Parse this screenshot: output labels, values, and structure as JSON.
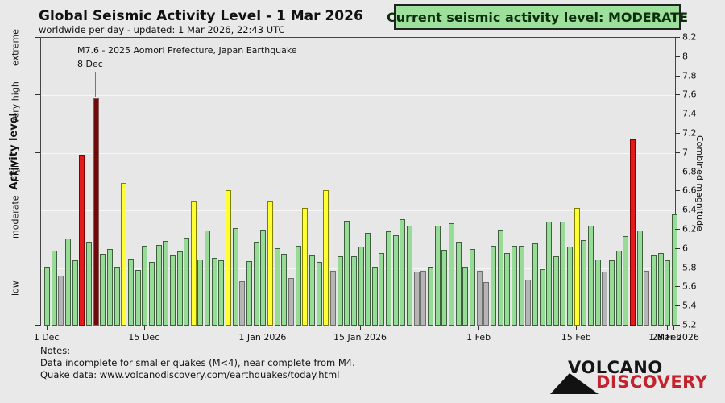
{
  "header": {
    "title": "Global Seismic Activity Level - 1 Mar 2026",
    "subtitle": "worldwide per day - updated:  1 Mar 2026, 22:43 UTC",
    "badge": "Current seismic activity level: MODERATE"
  },
  "annotation": {
    "text": "M7.6 - 2025 Aomori Prefecture, Japan Earthquake",
    "date": "8 Dec"
  },
  "notes": {
    "title": "Notes:",
    "lines": [
      "Data incomplete for smaller quakes (M<4), near complete from M4.",
      "Quake data: www.volcanodiscovery.com/earthquakes/today.html"
    ]
  },
  "logo": {
    "line1": "VOLCANO",
    "line2": "DISCOVERY"
  },
  "colors": {
    "background": "#e9e9e9",
    "plot_background": "#e7e7e7",
    "grid": "#f7f7f7",
    "badge_bg": "#9ce09c",
    "badge_border": "#222222",
    "logo_red": "#c4232e",
    "annotation_line": "#777777",
    "levels": {
      "green": {
        "fill": "#96db96",
        "border": "#3f5f3f"
      },
      "gray": {
        "fill": "#b5b5b5",
        "border": "#6f6f6f"
      },
      "yellow": {
        "fill": "#ffff33",
        "border": "#7f7f00"
      },
      "red": {
        "fill": "#e51a1a",
        "border": "#7f0000"
      },
      "darkred": {
        "fill": "#6f0a0a",
        "border": "#8a5a5a"
      }
    }
  },
  "chart_data": {
    "type": "bar",
    "title": "Global Seismic Activity Level - 1 Mar 2026",
    "xlabel": "",
    "ylabel_left": "Activity level",
    "ylabel_right": "Combined magnitude",
    "ylim": [
      5.2,
      8.2
    ],
    "grid": true,
    "y_band_boundaries": [
      5.8,
      6.4,
      7.0,
      7.6
    ],
    "y_categories": [
      "low",
      "moderate",
      "high",
      "very high",
      "extreme"
    ],
    "right_tick_labels": [
      "8.2",
      "8",
      "7.8",
      "7.6",
      "7.4",
      "7.2",
      "7",
      "6.8",
      "6.6",
      "6.4",
      "6.2",
      "6",
      "5.8",
      "5.6",
      "5.4",
      "5.2"
    ],
    "x_ticks": [
      {
        "label": "1 Dec",
        "day": 0
      },
      {
        "label": "15 Dec",
        "day": 14
      },
      {
        "label": "1 Jan 2026",
        "day": 31
      },
      {
        "label": "15 Jan 2026",
        "day": 45
      },
      {
        "label": "1 Feb",
        "day": 62
      },
      {
        "label": "15 Feb",
        "day": 76
      },
      {
        "label": "28 Feb",
        "day": 89
      },
      {
        "label": "1 Mar 2026",
        "day": 90
      }
    ],
    "categories": [
      "1 Dec",
      "2 Dec",
      "3 Dec",
      "4 Dec",
      "5 Dec",
      "6 Dec",
      "7 Dec",
      "8 Dec",
      "9 Dec",
      "10 Dec",
      "11 Dec",
      "12 Dec",
      "13 Dec",
      "14 Dec",
      "15 Dec",
      "16 Dec",
      "17 Dec",
      "18 Dec",
      "19 Dec",
      "20 Dec",
      "21 Dec",
      "22 Dec",
      "23 Dec",
      "24 Dec",
      "25 Dec",
      "26 Dec",
      "27 Dec",
      "28 Dec",
      "29 Dec",
      "30 Dec",
      "31 Dec",
      "1 Jan",
      "2 Jan",
      "3 Jan",
      "4 Jan",
      "5 Jan",
      "6 Jan",
      "7 Jan",
      "8 Jan",
      "9 Jan",
      "10 Jan",
      "11 Jan",
      "12 Jan",
      "13 Jan",
      "14 Jan",
      "15 Jan",
      "16 Jan",
      "17 Jan",
      "18 Jan",
      "19 Jan",
      "20 Jan",
      "21 Jan",
      "22 Jan",
      "23 Jan",
      "24 Jan",
      "25 Jan",
      "26 Jan",
      "27 Jan",
      "28 Jan",
      "29 Jan",
      "30 Jan",
      "31 Jan",
      "1 Feb",
      "2 Feb",
      "3 Feb",
      "4 Feb",
      "5 Feb",
      "6 Feb",
      "7 Feb",
      "8 Feb",
      "9 Feb",
      "10 Feb",
      "11 Feb",
      "12 Feb",
      "13 Feb",
      "14 Feb",
      "15 Feb",
      "16 Feb",
      "17 Feb",
      "18 Feb",
      "19 Feb",
      "20 Feb",
      "21 Feb",
      "22 Feb",
      "23 Feb",
      "24 Feb",
      "25 Feb",
      "26 Feb",
      "27 Feb",
      "28 Feb",
      "1 Mar"
    ],
    "values": [
      5.81,
      5.98,
      5.72,
      6.11,
      5.88,
      6.98,
      6.07,
      7.57,
      5.95,
      6.0,
      5.81,
      6.69,
      5.9,
      5.78,
      6.03,
      5.86,
      6.04,
      6.08,
      5.94,
      5.97,
      6.12,
      6.5,
      5.89,
      6.19,
      5.91,
      5.88,
      6.61,
      6.22,
      5.66,
      5.87,
      6.07,
      6.2,
      6.5,
      6.01,
      5.95,
      5.7,
      6.03,
      6.43,
      5.94,
      5.86,
      6.61,
      5.77,
      5.92,
      6.29,
      5.92,
      6.02,
      6.17,
      5.81,
      5.96,
      6.18,
      6.14,
      6.31,
      6.24,
      5.76,
      5.77,
      5.81,
      6.24,
      5.99,
      6.27,
      6.07,
      5.81,
      6.0,
      5.77,
      5.65,
      6.03,
      6.2,
      5.96,
      6.03,
      6.03,
      5.68,
      6.06,
      5.79,
      6.28,
      5.92,
      6.28,
      6.02,
      6.43,
      6.09,
      6.24,
      5.89,
      5.76,
      5.88,
      5.98,
      6.13,
      7.14,
      6.19,
      5.77,
      5.94,
      5.96,
      5.88,
      6.36
    ],
    "levels": [
      "green",
      "green",
      "gray",
      "green",
      "green",
      "red",
      "green",
      "darkred",
      "green",
      "green",
      "green",
      "yellow",
      "green",
      "green",
      "green",
      "green",
      "green",
      "green",
      "green",
      "green",
      "green",
      "yellow",
      "green",
      "green",
      "green",
      "green",
      "yellow",
      "green",
      "gray",
      "green",
      "green",
      "green",
      "yellow",
      "green",
      "green",
      "gray",
      "green",
      "yellow",
      "green",
      "green",
      "yellow",
      "gray",
      "green",
      "green",
      "green",
      "green",
      "green",
      "green",
      "green",
      "green",
      "green",
      "green",
      "green",
      "gray",
      "gray",
      "green",
      "green",
      "green",
      "green",
      "green",
      "green",
      "green",
      "gray",
      "gray",
      "green",
      "green",
      "green",
      "green",
      "green",
      "gray",
      "green",
      "green",
      "green",
      "green",
      "green",
      "green",
      "yellow",
      "green",
      "green",
      "green",
      "gray",
      "green",
      "green",
      "green",
      "red",
      "green",
      "gray",
      "green",
      "green",
      "green",
      "green"
    ],
    "annotated_bar": {
      "date": "8 Dec",
      "magnitude": 7.6,
      "label": "M7.6 - 2025 Aomori Prefecture, Japan Earthquake"
    },
    "legend_position": "none"
  }
}
